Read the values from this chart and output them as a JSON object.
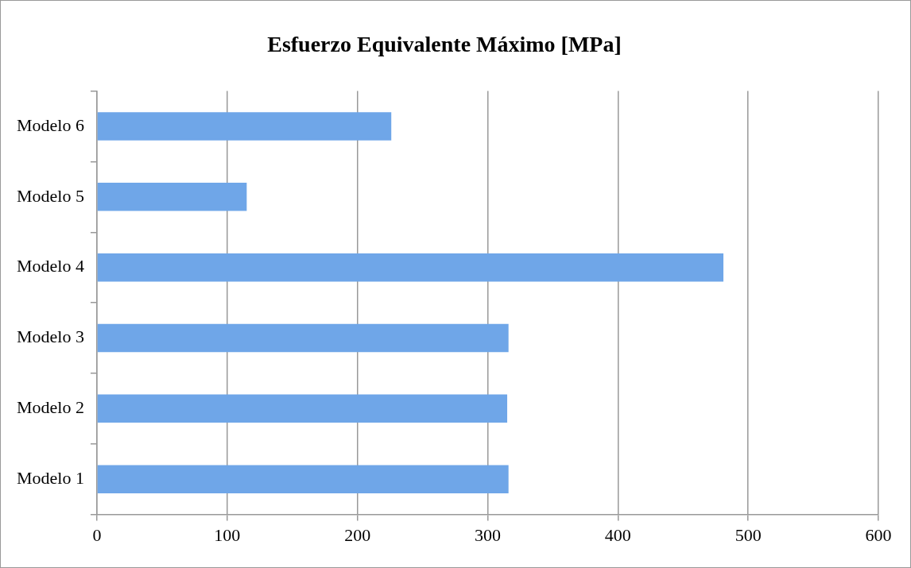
{
  "chart_data": {
    "type": "bar",
    "orientation": "horizontal",
    "title": "Esfuerzo Equivalente Máximo [MPa]",
    "categories": [
      "Modelo 6",
      "Modelo 5",
      "Modelo 4",
      "Modelo 3",
      "Modelo 2",
      "Modelo 1"
    ],
    "values": [
      226,
      115,
      481,
      316,
      315,
      316
    ],
    "color": "#6fa6e8",
    "xlim": [
      0,
      600
    ],
    "xticks": [
      0,
      100,
      200,
      300,
      400,
      500,
      600
    ],
    "grid": "x",
    "legend": false
  }
}
